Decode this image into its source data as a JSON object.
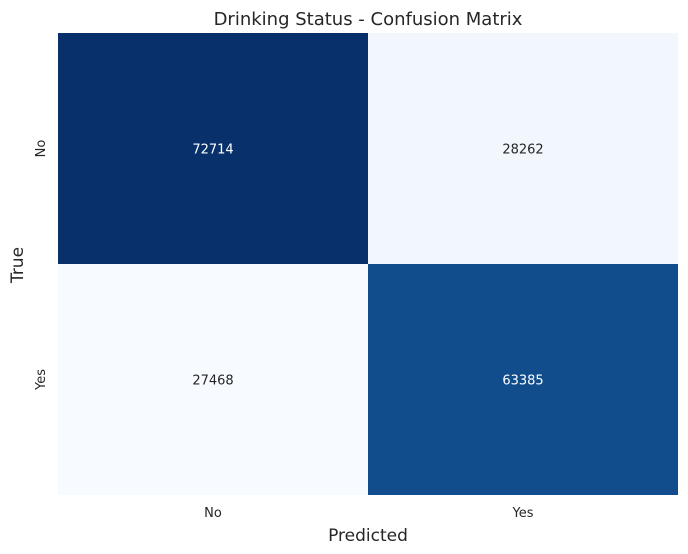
{
  "chart_data": {
    "type": "heatmap",
    "title": "Drinking Status - Confusion Matrix",
    "xlabel": "Predicted",
    "ylabel": "True",
    "x_categories": [
      "No",
      "Yes"
    ],
    "y_categories": [
      "No",
      "Yes"
    ],
    "values": [
      [
        72714,
        28262
      ],
      [
        27468,
        63385
      ]
    ],
    "colormap": "Blues",
    "colorbar": false,
    "colors": {
      "low": "#f7fbff",
      "mid": "#1967ad",
      "high": "#08306b",
      "text_dark": "#262626",
      "text_light": "#ffffff"
    }
  }
}
